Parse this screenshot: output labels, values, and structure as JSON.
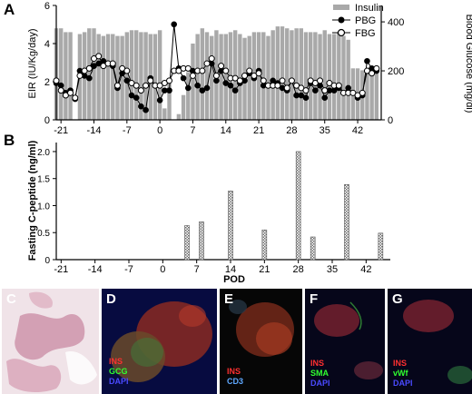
{
  "panel_a": {
    "letter": "A",
    "ylabel_left": "EIR (IU/Kg/day)",
    "ylabel_right": "Blood Glucose (mg/dl)",
    "yticks_left": [
      "0",
      "2",
      "4",
      "6"
    ],
    "yticks_right": [
      "0",
      "200",
      "400"
    ],
    "xticks": [
      "-21",
      "-14",
      "-7",
      "0",
      "7",
      "14",
      "21",
      "28",
      "35",
      "42"
    ],
    "legend": [
      "Insulin",
      "PBG",
      "FBG"
    ]
  },
  "panel_b": {
    "letter": "B",
    "ylabel": "Fasting C-peptide (ng/ml)",
    "xlabel": "POD",
    "yticks": [
      "0",
      "0.5",
      "1.0",
      "1.5",
      "2.0"
    ],
    "xticks": [
      "-21",
      "-14",
      "-7",
      "0",
      "7",
      "14",
      "21",
      "28",
      "35",
      "42"
    ]
  },
  "panels_micro": [
    {
      "letter": "C",
      "stains": []
    },
    {
      "letter": "D",
      "stains": [
        {
          "text": "INS",
          "color": "#ff3030"
        },
        {
          "text": "GCG",
          "color": "#30ff30"
        },
        {
          "text": "DAPI",
          "color": "#4a4aff"
        }
      ]
    },
    {
      "letter": "E",
      "stains": [
        {
          "text": "INS",
          "color": "#ff3030"
        },
        {
          "text": "CD3",
          "color": "#5fa8ff"
        }
      ]
    },
    {
      "letter": "F",
      "stains": [
        {
          "text": "INS",
          "color": "#ff3030"
        },
        {
          "text": "SMA",
          "color": "#30ff30"
        },
        {
          "text": "DAPI",
          "color": "#4a4aff"
        }
      ]
    },
    {
      "letter": "G",
      "stains": [
        {
          "text": "INS",
          "color": "#ff3030"
        },
        {
          "text": "vWf",
          "color": "#30ff30"
        },
        {
          "text": "DAPI",
          "color": "#4a4aff"
        }
      ]
    }
  ],
  "chart_data": [
    {
      "type": "bar",
      "title": "",
      "xlabel": "",
      "ylabel": "EIR (IU/Kg/day)",
      "ylabel_right": "Blood Glucose (mg/dl)",
      "xlim": [
        -22,
        47
      ],
      "ylim": [
        0,
        6
      ],
      "ylim_right": [
        0,
        467
      ],
      "grid": false,
      "legend_position": "top-right",
      "insulin": {
        "name": "Insulin",
        "x": [
          -22,
          -21,
          -20,
          -19,
          -17,
          -16,
          -15,
          -14,
          -13,
          -12,
          -11,
          -10,
          -9,
          -8,
          -7,
          -6,
          -5,
          -4,
          -3,
          -2,
          -1,
          0,
          1,
          2,
          4,
          5,
          6,
          7,
          8,
          9,
          10,
          11,
          12,
          13,
          14,
          15,
          16,
          17,
          18,
          19,
          20,
          21,
          22,
          23,
          24,
          25,
          26,
          27,
          28,
          29,
          30,
          31,
          32,
          33,
          34,
          35,
          36,
          37,
          38,
          39,
          40,
          41,
          42,
          43,
          44,
          45,
          46
        ],
        "values": [
          4.8,
          4.8,
          4.6,
          4.6,
          4.5,
          4.6,
          4.8,
          4.8,
          4.5,
          4.4,
          4.5,
          4.5,
          4.4,
          4.4,
          4.6,
          4.7,
          4.7,
          4.6,
          4.6,
          4.5,
          4.5,
          4.7,
          0.6,
          2.1,
          0.3,
          1.3,
          2.5,
          4.0,
          4.5,
          4.8,
          4.6,
          4.4,
          4.7,
          4.5,
          4.5,
          4.6,
          4.7,
          4.5,
          4.3,
          4.4,
          4.6,
          4.6,
          4.6,
          4.4,
          4.7,
          4.9,
          4.9,
          4.8,
          4.7,
          4.8,
          4.8,
          4.6,
          4.6,
          4.6,
          4.5,
          4.7,
          4.5,
          4.5,
          4.6,
          4.4,
          4.2,
          2.7,
          2.7,
          2.6,
          2.7,
          2.6,
          2.7
        ]
      },
      "pbg": {
        "name": "PBG",
        "x": [
          -22,
          -21,
          -20,
          -19,
          -18,
          -17,
          -16,
          -15,
          -14,
          -13,
          -12,
          -11,
          -10,
          -9,
          -8,
          -7,
          -6,
          -5,
          -4,
          -3,
          -2,
          -1,
          0,
          1,
          2,
          3,
          4,
          5,
          6,
          7,
          8,
          9,
          10,
          11,
          12,
          13,
          14,
          15,
          16,
          17,
          18,
          19,
          20,
          21,
          22,
          23,
          24,
          25,
          26,
          27,
          28,
          29,
          30,
          31,
          32,
          33,
          34,
          35,
          36,
          37,
          38,
          39,
          40,
          41,
          42,
          43,
          44,
          45,
          46
        ],
        "values": [
          150,
          140,
          110,
          120,
          85,
          200,
          180,
          170,
          220,
          230,
          240,
          230,
          220,
          130,
          190,
          160,
          100,
          90,
          55,
          40,
          170,
          140,
          80,
          120,
          120,
          390,
          210,
          170,
          130,
          200,
          140,
          120,
          130,
          230,
          160,
          200,
          150,
          140,
          120,
          150,
          160,
          190,
          170,
          200,
          140,
          140,
          160,
          150,
          130,
          120,
          160,
          100,
          100,
          90,
          150,
          120,
          140,
          90,
          120,
          120,
          130,
          110,
          130,
          110,
          90,
          100,
          240,
          210,
          200
        ]
      },
      "fbg": {
        "name": "FBG",
        "x": [
          -22,
          -21,
          -20,
          -19,
          -18,
          -17,
          -16,
          -15,
          -14,
          -13,
          -12,
          -11,
          -10,
          -9,
          -8,
          -7,
          -6,
          -5,
          -4,
          -3,
          -2,
          -1,
          0,
          1,
          2,
          3,
          4,
          5,
          6,
          7,
          8,
          9,
          10,
          11,
          12,
          13,
          14,
          15,
          16,
          17,
          18,
          19,
          20,
          21,
          22,
          23,
          24,
          25,
          26,
          27,
          28,
          29,
          30,
          31,
          32,
          33,
          34,
          35,
          36,
          37,
          38,
          39,
          40,
          41,
          42,
          43,
          44,
          45,
          46
        ],
        "values": [
          160,
          120,
          100,
          110,
          90,
          180,
          200,
          210,
          250,
          260,
          220,
          230,
          230,
          140,
          210,
          200,
          150,
          140,
          120,
          140,
          160,
          140,
          140,
          150,
          160,
          200,
          200,
          210,
          210,
          180,
          200,
          200,
          230,
          250,
          180,
          220,
          200,
          170,
          170,
          160,
          180,
          200,
          180,
          190,
          160,
          140,
          140,
          140,
          160,
          130,
          160,
          140,
          130,
          120,
          160,
          150,
          160,
          120,
          150,
          140,
          140,
          110,
          110,
          110,
          100,
          110,
          200,
          190,
          210
        ]
      }
    },
    {
      "type": "bar",
      "title": "",
      "xlabel": "POD",
      "ylabel": "Fasting C-peptide (ng/ml)",
      "xlim": [
        -22,
        47
      ],
      "ylim": [
        0,
        2.1
      ],
      "grid": false,
      "x": [
        5,
        8,
        14,
        21,
        28,
        31,
        38,
        45
      ],
      "values": [
        0.63,
        0.7,
        1.27,
        0.55,
        2.0,
        0.42,
        1.39,
        0.49
      ]
    }
  ]
}
